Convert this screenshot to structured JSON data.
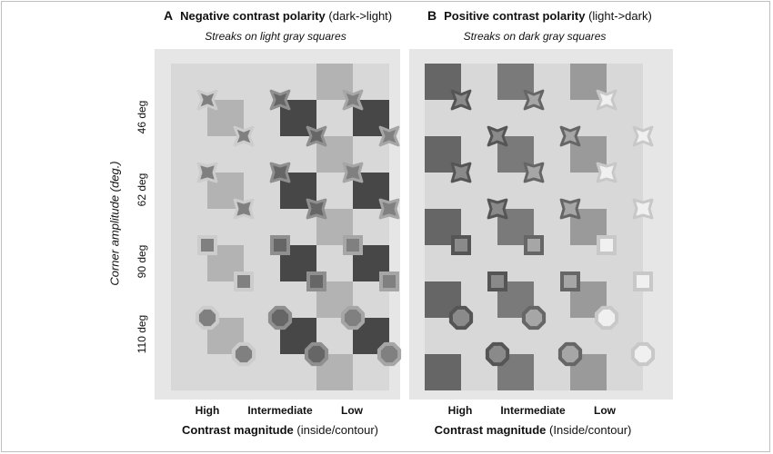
{
  "panel_a": {
    "letter": "A",
    "title_bold": "Negative contrast polarity",
    "title_rest": " (dark->light)",
    "subtitle": "Streaks on light gray squares",
    "xtick_labels": [
      "High",
      "Intermediate",
      "Low"
    ],
    "xaxis_bold": "Contrast magnitude",
    "xaxis_rest": " (inside/contour)"
  },
  "panel_b": {
    "letter": "B",
    "title_bold": "Positive contrast polarity",
    "title_rest": " (light->dark)",
    "subtitle": "Streaks on dark gray squares",
    "xtick_labels": [
      "High",
      "Intermediate",
      "Low"
    ],
    "xaxis_bold": "Contrast magnitude",
    "xaxis_rest": " (Inside/contour)"
  },
  "y_axis": {
    "title": "Corner amplitude (deg.)",
    "tick_labels": [
      "46 deg",
      "62 deg",
      "90 deg",
      "110 deg"
    ]
  },
  "colors": {
    "panel_background": "#e6e6e6",
    "panel_a_columns": [
      "#d8d8d8",
      "#b3b3b3",
      "#d8d8d8",
      "#474747",
      "#b3b3b3",
      "#474747"
    ],
    "panel_b_columns": [
      "#666666",
      "#d8d8d8",
      "#7a7a7a",
      "#d8d8d8",
      "#9a9a9a",
      "#d8d8d8"
    ],
    "panel_a_marker_groups": [
      {
        "fill": "#808080",
        "stroke": "#cccccc"
      },
      {
        "fill": "#666666",
        "stroke": "#8f8f8f"
      },
      {
        "fill": "#808080",
        "stroke": "#a6a6a6"
      }
    ],
    "panel_b_marker_groups": [
      {
        "fill": "#8a8a8a",
        "stroke": "#555555"
      },
      {
        "fill": "#a6a6a6",
        "stroke": "#666666"
      },
      {
        "fill": "#f0f0f0",
        "stroke": "#c8c8c8"
      }
    ]
  },
  "marker_shapes_by_row": [
    "star-46-deg",
    "star-62-deg",
    "square-90-deg",
    "octagon-110-deg"
  ]
}
